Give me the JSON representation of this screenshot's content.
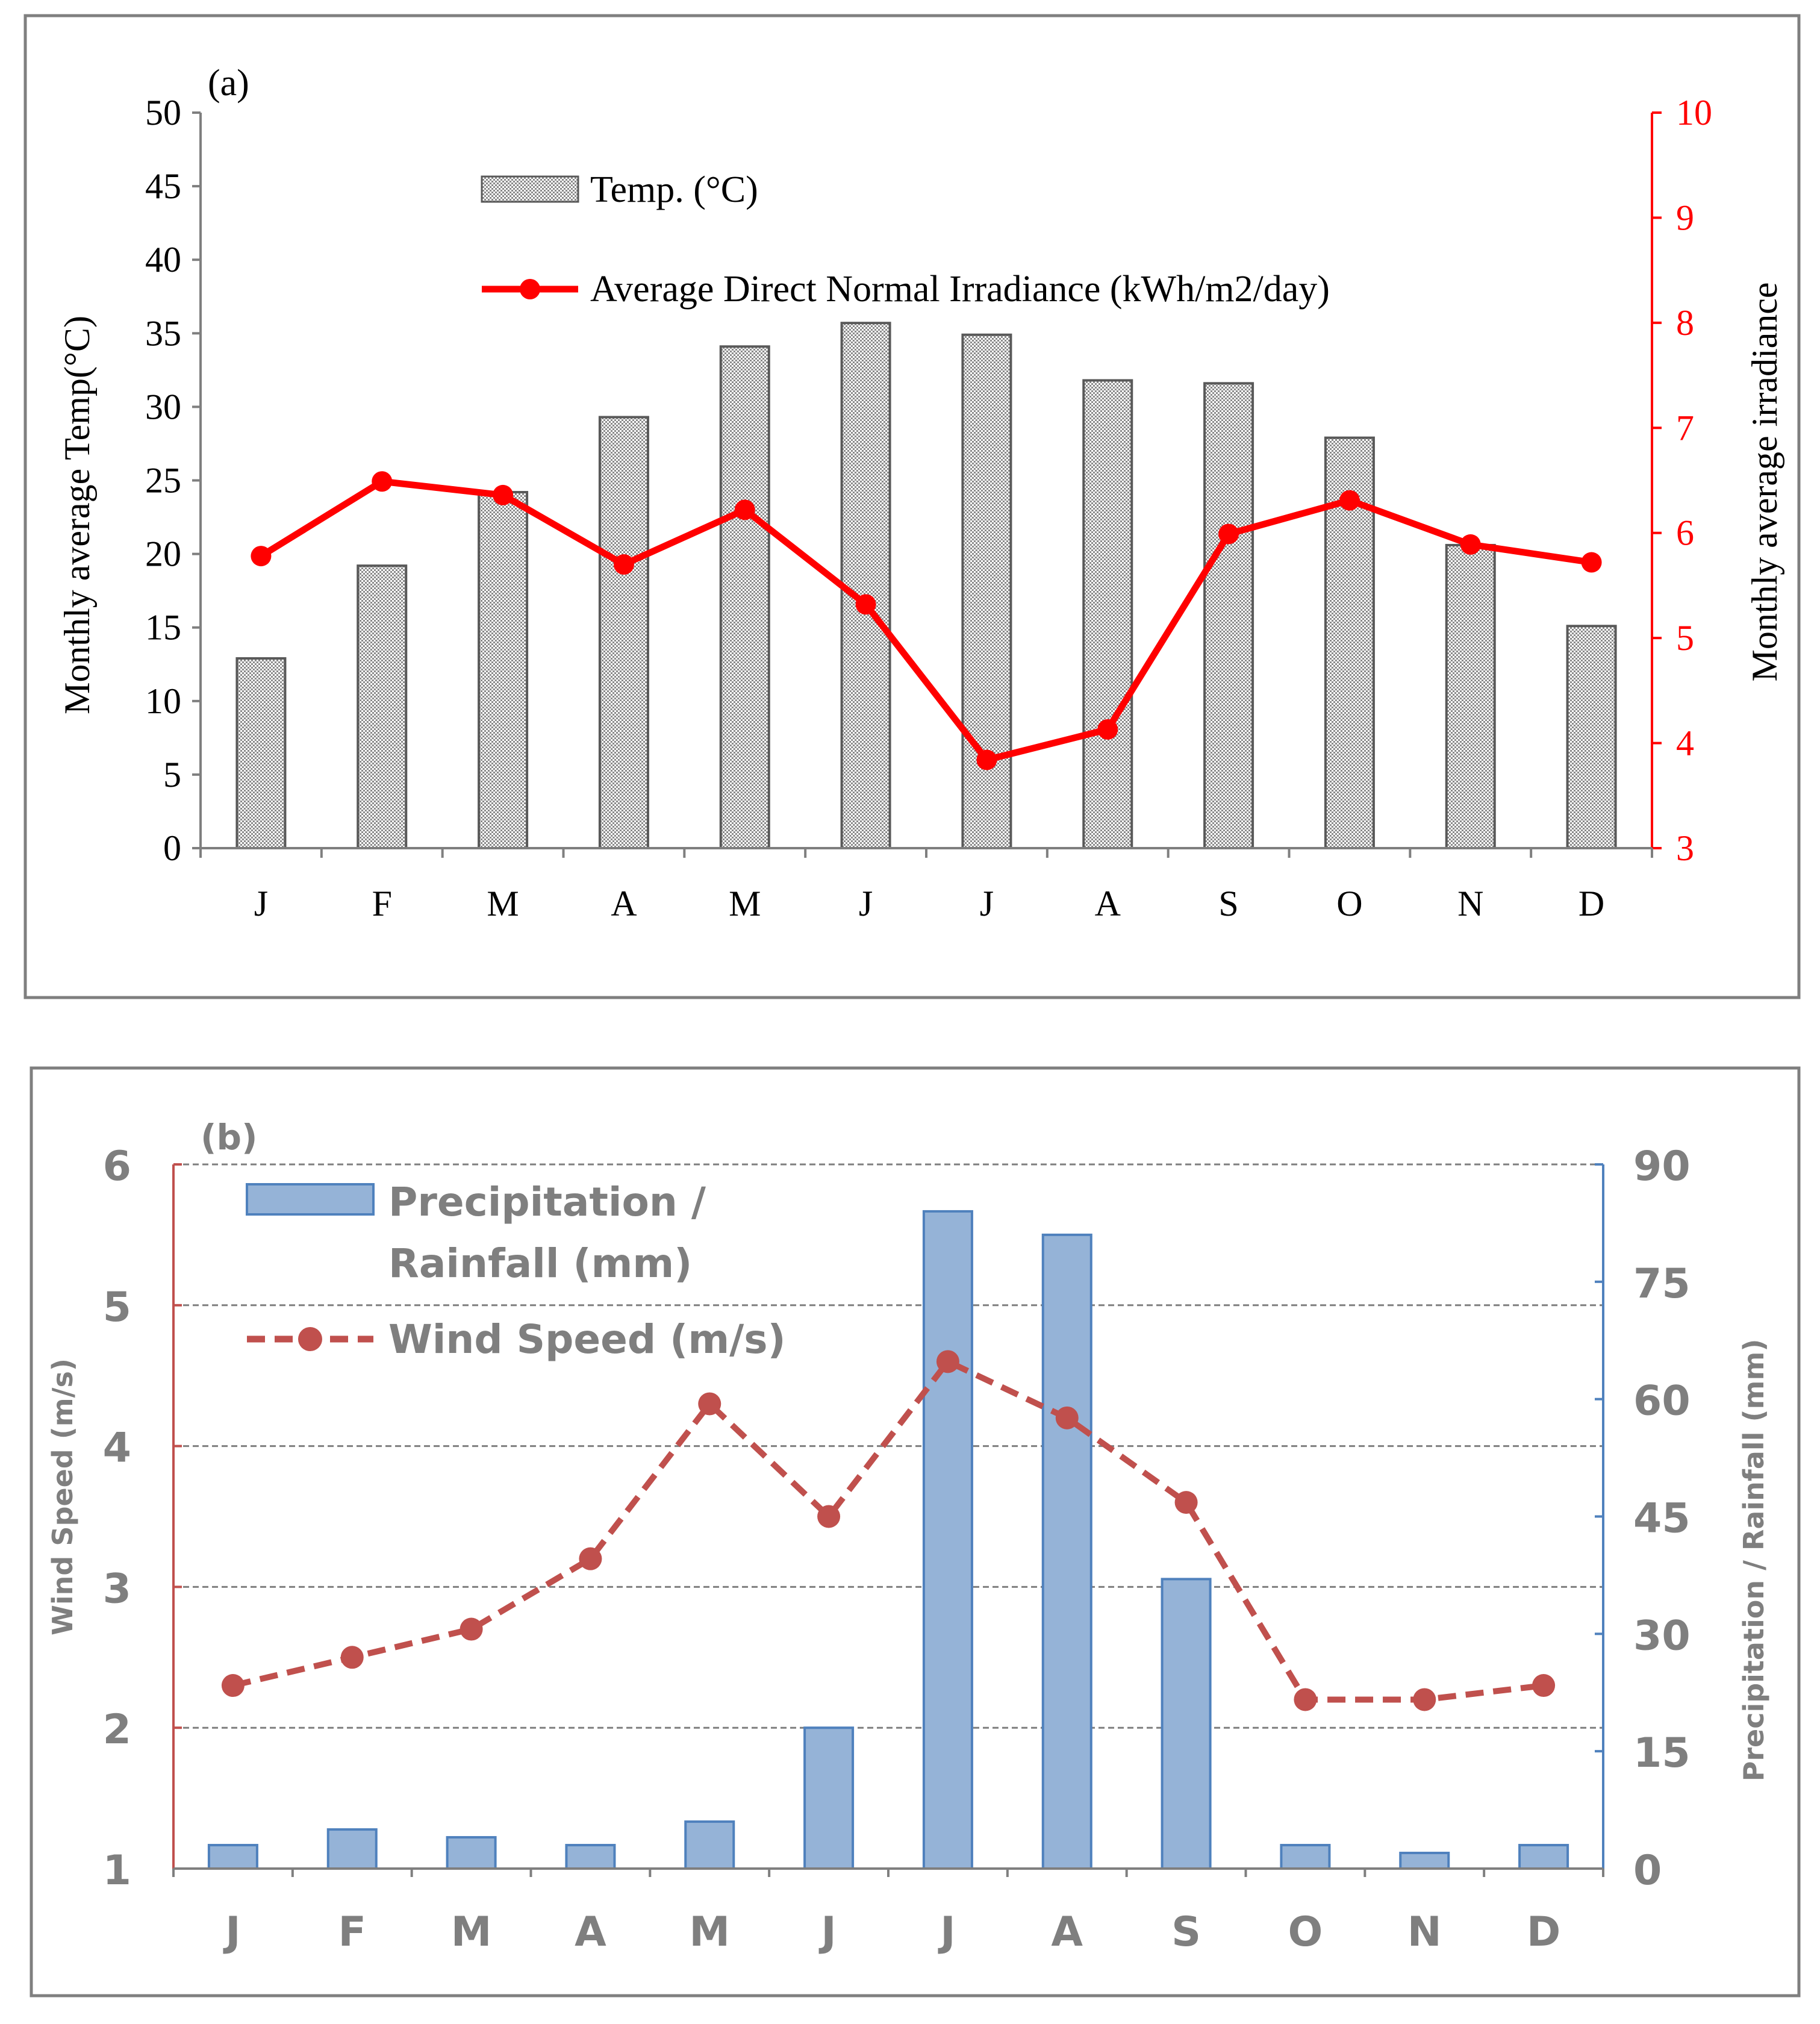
{
  "chart_data": [
    {
      "panel": "(a)",
      "type": "bar+line",
      "categories": [
        "J",
        "F",
        "M",
        "A",
        "M",
        "J",
        "J",
        "A",
        "S",
        "O",
        "N",
        "D"
      ],
      "series": [
        {
          "name": "Temp. (°C)",
          "type": "bar",
          "axis": "left",
          "values": [
            12.9,
            19.2,
            24.2,
            29.3,
            34.1,
            35.7,
            34.9,
            31.8,
            31.6,
            27.9,
            20.6,
            15.1
          ]
        },
        {
          "name": "Average Direct Normal Irradiance (kWh/m2/day)",
          "type": "line",
          "axis": "right",
          "color": "#ff0000",
          "values": [
            5.78,
            6.49,
            6.36,
            5.7,
            6.22,
            5.32,
            3.84,
            4.13,
            5.99,
            6.31,
            5.89,
            5.72
          ]
        }
      ],
      "ylabel": "Monthly average Temp(°C)",
      "ylim": [
        0,
        50
      ],
      "yticks": [
        "0",
        "5",
        "10",
        "15",
        "20",
        "25",
        "30",
        "35",
        "40",
        "45",
        "50"
      ],
      "y2label": "Monthly average irradiance",
      "y2lim": [
        3,
        10
      ],
      "y2ticks": [
        "3",
        "4",
        "5",
        "6",
        "7",
        "8",
        "9",
        "10"
      ],
      "legend": [
        "Temp. (°C)",
        "Average Direct Normal Irradiance (kWh/m2/day)"
      ],
      "legend_position": "top-center"
    },
    {
      "panel": "(b)",
      "type": "bar+line",
      "categories": [
        "J",
        "F",
        "M",
        "A",
        "M",
        "J",
        "J",
        "A",
        "S",
        "O",
        "N",
        "D"
      ],
      "series": [
        {
          "name": "Precipitation / Rainfall (mm)",
          "type": "bar",
          "axis": "right",
          "color": "#95b3d7",
          "values": [
            3,
            5,
            4,
            3,
            6,
            18,
            84,
            81,
            37,
            3,
            2,
            3
          ]
        },
        {
          "name": "Wind Speed (m/s)",
          "type": "line",
          "axis": "left",
          "color": "#c0504d",
          "dashed": true,
          "values": [
            2.3,
            2.5,
            2.7,
            3.2,
            4.3,
            3.5,
            4.6,
            4.2,
            3.6,
            2.2,
            2.2,
            2.3
          ]
        }
      ],
      "ylabel": "Wind Speed (m/s)",
      "ylim": [
        1,
        6
      ],
      "yticks": [
        "1",
        "2",
        "3",
        "4",
        "5",
        "6"
      ],
      "y2label": "Precipitation / Rainfall (mm)",
      "y2lim": [
        0,
        90
      ],
      "y2ticks": [
        "0",
        "15",
        "30",
        "45",
        "60",
        "75",
        "90"
      ],
      "legend": [
        "Precipitation / Rainfall (mm)",
        "Wind Speed (m/s)"
      ],
      "legend_position": "top-left",
      "grid": true
    }
  ],
  "panel_a": {
    "label": "(a)",
    "legend_bar": "Temp. (°C)",
    "legend_line": "Average Direct Normal Irradiance (kWh/m2/day)",
    "ylabel": "Monthly average Temp(°C)",
    "y2label": "Monthly average irradiance"
  },
  "panel_b": {
    "label": "(b)",
    "legend_bar_line1": "Precipitation /",
    "legend_bar_line2": "Rainfall (mm)",
    "legend_line": "Wind Speed (m/s)",
    "ylabel": "Wind Speed (m/s)",
    "y2label": "Precipitation / Rainfall (mm)"
  },
  "colors": {
    "irradiance": "#ff0000",
    "rain_fill": "#95b3d7",
    "rain_stroke": "#4f81bd",
    "wind": "#c0504d",
    "text_b": "#7f7f7f",
    "frame": "#7f7f7f"
  }
}
